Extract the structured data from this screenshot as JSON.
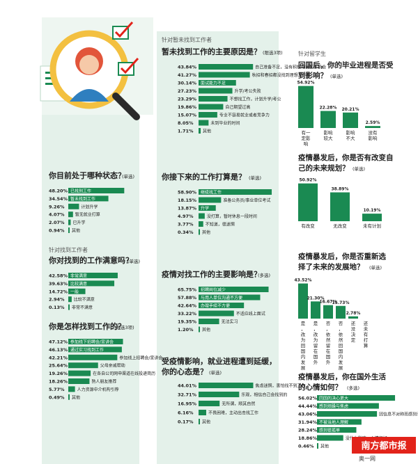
{
  "colors": {
    "accent": "#1a8a52",
    "panel": "#e4f1ea",
    "dark": "#2a2a2a",
    "badge_red": "#e2231a"
  },
  "left": {
    "q1": {
      "title": "你目前处于哪种状态？",
      "note": "(单选)"
    },
    "q1_note_group": "针对找到工作者",
    "q2": {
      "title": "你对找到的工作满意吗？",
      "note": "(单选)"
    },
    "q3": {
      "title": "你是怎样找到工作的？",
      "note": "(限选3项)"
    }
  },
  "middle": {
    "group": "针对暂未找到工作者",
    "q4": {
      "title": "暂未找到工作的主要原因是？",
      "note": "(限选3项)"
    },
    "q5": {
      "title": "你接下来的工作打算是？",
      "note": "(单选)"
    },
    "q6": {
      "title": "疫情对找工作的主要影响是？",
      "note": "(多选)"
    },
    "q7": {
      "title1": "受疫情影响，就业进程遭到延缓，",
      "title2": "你的心态是？",
      "note": "(单选)"
    }
  },
  "right": {
    "group": "针对留学生",
    "q8": {
      "title1": "回国后，你的毕业进程是否受",
      "title2": "到影响？",
      "note": "(单选)"
    },
    "q9": {
      "title1": "疫情暴发后，你是否有改变自",
      "title2": "己的未来规划？",
      "note": "(单选)"
    },
    "q10": {
      "title1": "疫情暴发后，你是否重新选",
      "title2": "择了未来的发展地？",
      "note": "(单选)"
    },
    "q11": {
      "title1": "疫情暴发后，你在国外生活",
      "title2": "的心情如何？",
      "note": "(多选)"
    }
  },
  "badge": {
    "text": "南方都市报",
    "sub": "奥一网"
  },
  "chart_data": [
    {
      "type": "bar",
      "orientation": "horizontal",
      "id": "q1",
      "max": 60,
      "categories": [
        "已找到工作",
        "暂未找到工作",
        "计划升学",
        "暂无就业打算",
        "已升学",
        "其他"
      ],
      "values": [
        48.2,
        34.54,
        9.26,
        4.07,
        2.07,
        0.94
      ],
      "labels": [
        "48.20%",
        "34.54%",
        "9.26%",
        "4.07%",
        "2.07%",
        "0.94%"
      ]
    },
    {
      "type": "bar",
      "orientation": "horizontal",
      "id": "q2",
      "max": 60,
      "categories": [
        "非常满意",
        "比较满意",
        "一般",
        "比较不满意",
        "非常不满意"
      ],
      "values": [
        42.58,
        39.63,
        14.72,
        2.94,
        0.13
      ],
      "labels": [
        "42.58%",
        "39.63%",
        "14.72%",
        "2.94%",
        "0.13%"
      ]
    },
    {
      "type": "bar",
      "orientation": "horizontal",
      "id": "q3",
      "max": 60,
      "categories": [
        "参加线下招聘会/宣讲会",
        "通过实习找到工作",
        "参加线上招聘会/宣讲会",
        "父母亲戚帮助",
        "在各自公司网申渠道在线投递简历",
        "熟人朋友推荐",
        "人力资源中介机构引荐",
        "其他"
      ],
      "values": [
        47.12,
        46.13,
        42.21,
        25.64,
        19.26,
        18.26,
        5.77,
        0.49
      ],
      "labels": [
        "47.12%",
        "46.13%",
        "42.21%",
        "25.64%",
        "19.26%",
        "18.26%",
        "5.77%",
        "0.49%"
      ]
    },
    {
      "type": "bar",
      "orientation": "horizontal",
      "id": "q4",
      "max": 60,
      "categories": [
        "自己准备不足，没有积极寻找工作机会",
        "秋招和春招都没找到理想工作",
        "面试能力不足",
        "升学/考公失败",
        "不想找工作，计划升学/考公",
        "自己期望过高",
        "专业不容易就业或者竞争力",
        "未到毕业的时间",
        "其他"
      ],
      "values": [
        43.84,
        41.27,
        30.14,
        27.23,
        23.29,
        19.86,
        15.07,
        8.05,
        1.71
      ],
      "labels": [
        "43.84%",
        "41.27%",
        "30.14%",
        "27.23%",
        "23.29%",
        "19.86%",
        "15.07%",
        "8.05%",
        "1.71%"
      ]
    },
    {
      "type": "bar",
      "orientation": "horizontal",
      "id": "q5",
      "max": 60,
      "categories": [
        "继续找工作",
        "准备公务员/事业单位考试",
        "升学",
        "没打算，暂时休息一段时间",
        "不知道，很迷惘",
        "其他"
      ],
      "values": [
        58.9,
        18.15,
        13.87,
        4.97,
        3.77,
        0.34
      ],
      "labels": [
        "58.90%",
        "18.15%",
        "13.87%",
        "4.97%",
        "3.77%",
        "0.34%"
      ]
    },
    {
      "type": "bar",
      "orientation": "horizontal",
      "id": "q6",
      "max": 70,
      "categories": [
        "招聘岗位减少",
        "与用人单位沟通不方便",
        "办理手续不方便",
        "不适应线上面试",
        "无法实习",
        "其他"
      ],
      "values": [
        65.75,
        57.88,
        42.64,
        33.22,
        19.35,
        1.2
      ],
      "labels": [
        "65.75%",
        "57.88%",
        "42.64%",
        "33.22%",
        "19.35%",
        "1.20%"
      ]
    },
    {
      "type": "bar",
      "orientation": "horizontal",
      "id": "q7",
      "max": 60,
      "categories": [
        "焦虑迷惘，害怕找不到工作",
        "乐观，相信自己会找到的",
        "无所谓，顺其自然",
        "不畏困难，主动出击找工作",
        "其他"
      ],
      "values": [
        44.01,
        32.71,
        16.95,
        6.16,
        0.17
      ],
      "labels": [
        "44.01%",
        "32.71%",
        "16.95%",
        "6.16%",
        "0.17%"
      ]
    },
    {
      "type": "bar",
      "orientation": "vertical",
      "id": "q8",
      "max": 60,
      "categories": [
        "有一定影响",
        "影响较大",
        "影响不大",
        "没有影响"
      ],
      "values": [
        54.92,
        22.28,
        20.21,
        2.59
      ],
      "labels": [
        "54.92%",
        "22.28%",
        "20.21%",
        "2.59%"
      ]
    },
    {
      "type": "bar",
      "orientation": "vertical",
      "id": "q9",
      "max": 60,
      "categories": [
        "有改变",
        "无改变",
        "未有计划"
      ],
      "values": [
        50.92,
        38.89,
        10.19
      ],
      "labels": [
        "50.92%",
        "38.89%",
        "10.19%"
      ]
    },
    {
      "type": "bar",
      "orientation": "vertical",
      "id": "q10",
      "max": 50,
      "categories": [
        "是，改为回国内发展",
        "是，改为留在国外",
        "否，依然留在国外",
        "否，依然回国内发展",
        "还没决定",
        "还未有打算"
      ],
      "values": [
        43.52,
        21.3,
        16.67,
        15.73,
        2.78,
        0
      ],
      "labels": [
        "43.52%",
        "21.30%",
        "16.67%",
        "15.73%",
        "2.78%",
        ""
      ]
    },
    {
      "type": "bar",
      "orientation": "horizontal",
      "id": "q11",
      "max": 60,
      "categories": [
        "回国的决心更大",
        "感到烦躁与焦虑",
        "因信息不对称而感到矛盾与纠结",
        "不被当地人理解",
        "感到很孤单",
        "没什么影响，心情很好",
        "其他"
      ],
      "values": [
        56.02,
        44.44,
        43.06,
        31.94,
        28.24,
        18.86,
        0.46
      ],
      "labels": [
        "56.02%",
        "44.44%",
        "43.06%",
        "31.94%",
        "28.24%",
        "18.86%",
        "0.46%"
      ]
    }
  ]
}
